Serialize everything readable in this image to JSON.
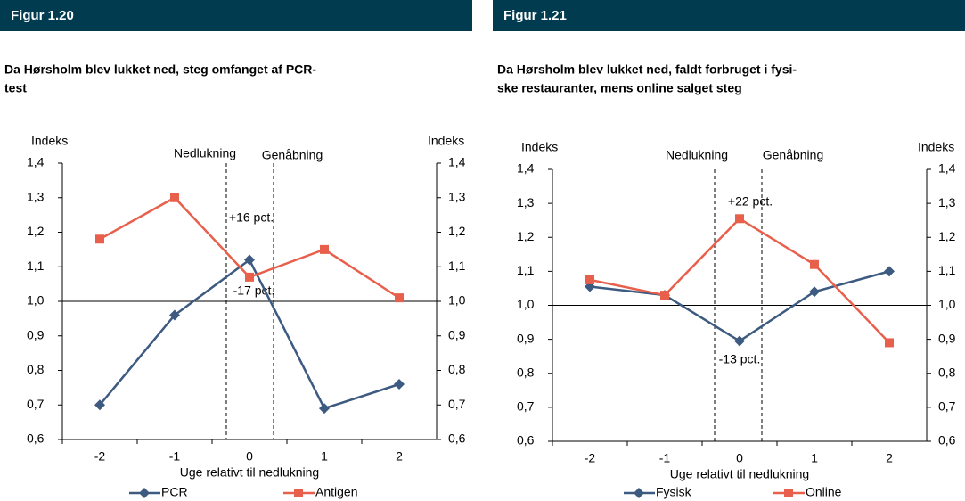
{
  "chart_data": [
    {
      "type": "line",
      "figure": "Figur 1.20",
      "title": [
        "Da Hørsholm blev lukket ned, steg omfanget af PCR-",
        "test"
      ],
      "ylabel": "Indeks",
      "y2label": "Indeks",
      "xlabel": "Uge relativt til nedlukning",
      "categories": [
        "-2",
        "-1",
        "0",
        "1",
        "2"
      ],
      "series": [
        {
          "name": "PCR",
          "color": "#3d5a80",
          "marker": "diamond",
          "values": [
            0.7,
            0.96,
            1.12,
            0.69,
            0.76
          ]
        },
        {
          "name": "Antigen",
          "color": "#e8604c",
          "marker": "square",
          "values": [
            1.18,
            1.3,
            1.07,
            1.15,
            1.01
          ]
        }
      ],
      "annotations": [
        "Nedlukning",
        "Genåbning",
        "+16 pct.",
        "-17 pct."
      ],
      "reference_line": 1.0,
      "ylim": [
        0.6,
        1.4
      ],
      "yticks": [
        {
          "value": 0.6,
          "label": "0,6"
        },
        {
          "value": 0.7,
          "label": "0,7"
        },
        {
          "value": 0.8,
          "label": "0,8"
        },
        {
          "value": 0.9,
          "label": "0,9"
        },
        {
          "value": 1.0,
          "label": "1,0"
        },
        {
          "value": 1.1,
          "label": "1,1"
        },
        {
          "value": 1.2,
          "label": "1,2"
        },
        {
          "value": 1.3,
          "label": "1,3"
        },
        {
          "value": 1.4,
          "label": "1,4"
        }
      ],
      "y2lim": [
        0.6,
        1.4
      ],
      "y2ticks": [
        {
          "value": 0.6,
          "label": "0,6"
        },
        {
          "value": 0.7,
          "label": "0,7"
        },
        {
          "value": 0.8,
          "label": "0,8"
        },
        {
          "value": 0.9,
          "label": "0,9"
        },
        {
          "value": 1.0,
          "label": "1,0"
        },
        {
          "value": 1.1,
          "label": "1,1"
        },
        {
          "value": 1.2,
          "label": "1,2"
        },
        {
          "value": 1.3,
          "label": "1,3"
        },
        {
          "value": 1.4,
          "label": "1,4"
        }
      ]
    },
    {
      "type": "line",
      "figure": "Figur 1.21",
      "title": [
        "Da Hørsholm blev lukket ned, faldt forbruget i fysi-",
        "ske restauranter, mens online salget steg"
      ],
      "ylabel": "Indeks",
      "y2label": "Indeks",
      "xlabel": "Uge relativt til nedlukning",
      "categories": [
        "-2",
        "-1",
        "0",
        "1",
        "2"
      ],
      "series": [
        {
          "name": "Fysisk",
          "color": "#3d5a80",
          "marker": "diamond",
          "values": [
            1.055,
            1.03,
            0.895,
            1.04,
            1.1
          ]
        },
        {
          "name": "Online",
          "color": "#e8604c",
          "marker": "square",
          "values": [
            1.075,
            1.03,
            1.255,
            1.12,
            0.89
          ]
        }
      ],
      "annotations": [
        "Nedlukning",
        "Genåbning",
        "+22 pct.",
        "-13 pct."
      ],
      "reference_line": 1.0,
      "ylim": [
        0.6,
        1.4
      ],
      "yticks": [
        {
          "value": 0.6,
          "label": "0,6"
        },
        {
          "value": 0.7,
          "label": "0,7"
        },
        {
          "value": 0.8,
          "label": "0,8"
        },
        {
          "value": 0.9,
          "label": "0,9"
        },
        {
          "value": 1.0,
          "label": "1,0"
        },
        {
          "value": 1.1,
          "label": "1,1"
        },
        {
          "value": 1.2,
          "label": "1,2"
        },
        {
          "value": 1.3,
          "label": "1,3"
        },
        {
          "value": 1.4,
          "label": "1,4"
        }
      ],
      "y2lim": [
        0.6,
        1.4
      ],
      "y2ticks": [
        {
          "value": 0.6,
          "label": "0,6"
        },
        {
          "value": 0.7,
          "label": "0,7"
        },
        {
          "value": 0.8,
          "label": "0,8"
        },
        {
          "value": 0.9,
          "label": "0,9"
        },
        {
          "value": 1.0,
          "label": "1,0"
        },
        {
          "value": 1.1,
          "label": "1,1"
        },
        {
          "value": 1.2,
          "label": "1,2"
        },
        {
          "value": 1.3,
          "label": "1,3"
        },
        {
          "value": 1.4,
          "label": "1,4"
        }
      ]
    }
  ]
}
